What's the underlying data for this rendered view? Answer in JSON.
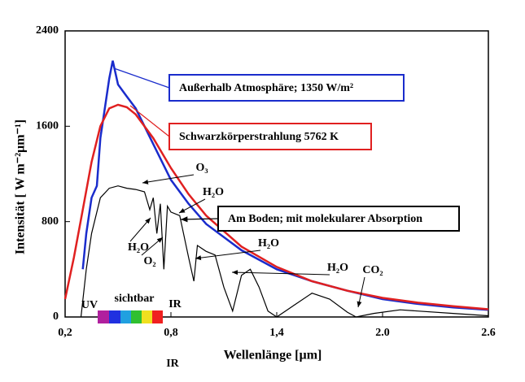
{
  "chart_data": {
    "type": "line",
    "xlabel": "Wellenlänge [µm]",
    "ylabel": "Intensität  [  W m⁻²µm⁻¹]",
    "xlim": [
      0.2,
      2.6
    ],
    "ylim": [
      0,
      2400
    ],
    "xticks": [
      {
        "value": 0.2,
        "label": "0,2"
      },
      {
        "value": 0.8,
        "label": "0,8"
      },
      {
        "value": 1.4,
        "label": "1,4"
      },
      {
        "value": 2.0,
        "label": "2.0"
      },
      {
        "value": 2.6,
        "label": "2.6"
      }
    ],
    "yticks": [
      0,
      800,
      1600,
      2400
    ],
    "series": [
      {
        "name": "Außerhalb Atmosphäre; 1350 W/m²",
        "color": "#1a2ccc",
        "x": [
          0.3,
          0.32,
          0.35,
          0.38,
          0.4,
          0.42,
          0.45,
          0.47,
          0.5,
          0.55,
          0.6,
          0.7,
          0.8,
          0.9,
          1.0,
          1.2,
          1.4,
          1.6,
          1.8,
          2.0,
          2.2,
          2.4,
          2.6
        ],
        "values": [
          400,
          700,
          1000,
          1100,
          1500,
          1700,
          2000,
          2150,
          1950,
          1850,
          1750,
          1450,
          1150,
          950,
          780,
          560,
          400,
          300,
          220,
          150,
          110,
          80,
          60
        ]
      },
      {
        "name": "Schwarzkörperstrahlung  5762  K",
        "color": "#e02020",
        "x": [
          0.2,
          0.25,
          0.3,
          0.35,
          0.4,
          0.45,
          0.5,
          0.55,
          0.6,
          0.7,
          0.8,
          0.9,
          1.0,
          1.2,
          1.4,
          1.6,
          1.8,
          2.0,
          2.2,
          2.4,
          2.6
        ],
        "values": [
          150,
          500,
          900,
          1300,
          1600,
          1750,
          1780,
          1760,
          1700,
          1500,
          1250,
          1030,
          850,
          590,
          420,
          300,
          220,
          160,
          120,
          90,
          65
        ]
      },
      {
        "name": "Am Boden; mit molekularer Absorption",
        "color": "#000000",
        "x": [
          0.29,
          0.32,
          0.35,
          0.4,
          0.45,
          0.5,
          0.55,
          0.6,
          0.65,
          0.68,
          0.7,
          0.72,
          0.74,
          0.76,
          0.78,
          0.8,
          0.85,
          0.9,
          0.93,
          0.95,
          1.0,
          1.05,
          1.1,
          1.15,
          1.2,
          1.25,
          1.3,
          1.35,
          1.4,
          1.5,
          1.6,
          1.7,
          1.8,
          1.85,
          1.95,
          2.1,
          2.2,
          2.4,
          2.6
        ],
        "values": [
          0,
          400,
          700,
          1000,
          1080,
          1100,
          1080,
          1070,
          1050,
          900,
          1000,
          700,
          950,
          400,
          930,
          880,
          850,
          500,
          300,
          600,
          550,
          520,
          250,
          50,
          350,
          400,
          250,
          50,
          0,
          100,
          200,
          150,
          40,
          0,
          30,
          60,
          50,
          30,
          10
        ]
      }
    ],
    "annotations": [
      "O₃",
      "H₂O",
      "H₂O",
      "O₂",
      "H₂O",
      "H₂O",
      "CO₂",
      "UV",
      "sichtbar",
      "IR",
      "IR"
    ]
  }
}
